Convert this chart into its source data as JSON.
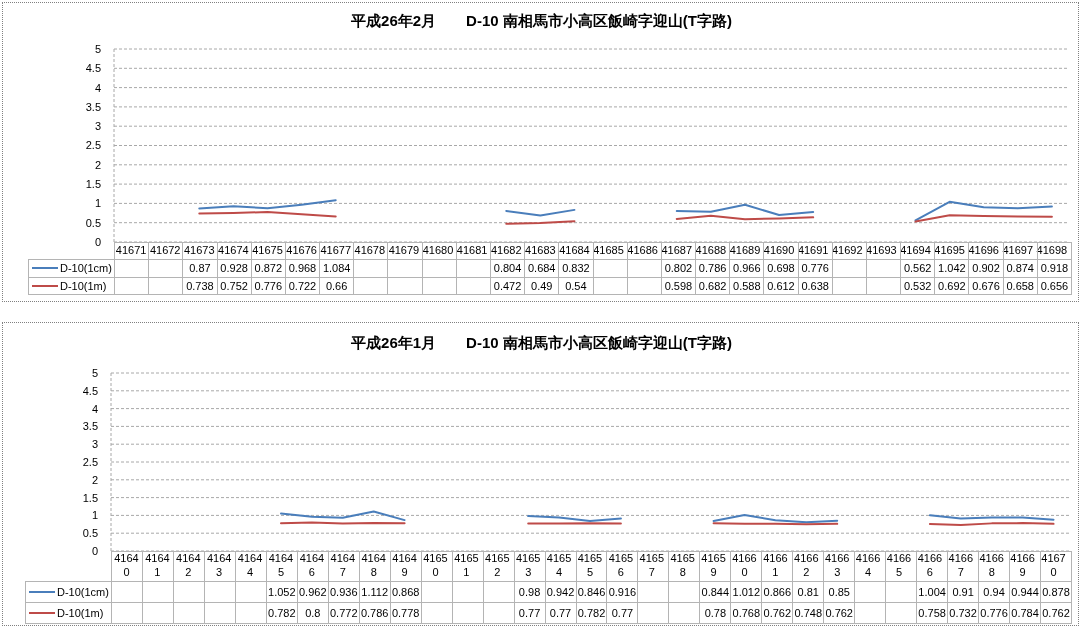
{
  "chart_data": [
    {
      "type": "line",
      "title": "平成26年2月　　D-10 南相馬市小高区飯崎字迎山(T字路)",
      "categories": [
        "41671",
        "41672",
        "41673",
        "41674",
        "41675",
        "41676",
        "41677",
        "41678",
        "41679",
        "41680",
        "41681",
        "41682",
        "41683",
        "41684",
        "41685",
        "41686",
        "41687",
        "41688",
        "41689",
        "41690",
        "41691",
        "41692",
        "41693",
        "41694",
        "41695",
        "41696",
        "41697",
        "41698"
      ],
      "series": [
        {
          "name": "D-10(1cm)",
          "color": "#4a7ebb",
          "values": [
            null,
            null,
            0.87,
            0.928,
            0.872,
            0.968,
            1.084,
            null,
            null,
            null,
            null,
            0.804,
            0.684,
            0.832,
            null,
            null,
            0.802,
            0.786,
            0.966,
            0.698,
            0.776,
            null,
            null,
            0.562,
            1.042,
            0.902,
            0.874,
            0.918
          ]
        },
        {
          "name": "D-10(1m)",
          "color": "#be4b48",
          "values": [
            null,
            null,
            0.738,
            0.752,
            0.776,
            0.722,
            0.66,
            null,
            null,
            null,
            null,
            0.472,
            0.49,
            0.54,
            null,
            null,
            0.598,
            0.682,
            0.588,
            0.612,
            0.638,
            null,
            null,
            0.532,
            0.692,
            0.676,
            0.658,
            0.656
          ]
        }
      ],
      "ylim": [
        0,
        5
      ],
      "yticks": [
        0,
        0.5,
        1,
        1.5,
        2,
        2.5,
        3,
        3.5,
        4,
        4.5,
        5
      ],
      "grid": "y",
      "legend": "bottom left",
      "marker": "none",
      "data_labels": true
    },
    {
      "type": "line",
      "title": "平成26年1月　　D-10 南相馬市小高区飯崎字迎山(T字路)",
      "categories": [
        "41640",
        "41641",
        "41642",
        "41643",
        "41644",
        "41645",
        "41646",
        "41647",
        "41648",
        "41649",
        "41650",
        "41651",
        "41652",
        "41653",
        "41654",
        "41655",
        "41656",
        "41657",
        "41658",
        "41659",
        "41660",
        "41661",
        "41662",
        "41663",
        "41664",
        "41665",
        "41666",
        "41667",
        "41668",
        "41669",
        "41670"
      ],
      "series": [
        {
          "name": "D-10(1cm)",
          "color": "#4a7ebb",
          "values": [
            null,
            null,
            null,
            null,
            null,
            1.052,
            0.962,
            0.936,
            1.112,
            0.868,
            null,
            null,
            null,
            0.98,
            0.942,
            0.846,
            0.916,
            null,
            null,
            0.844,
            1.012,
            0.866,
            0.81,
            0.85,
            null,
            null,
            1.004,
            0.91,
            0.94,
            0.944,
            0.878
          ]
        },
        {
          "name": "D-10(1m)",
          "color": "#be4b48",
          "values": [
            null,
            null,
            null,
            null,
            null,
            0.782,
            0.8,
            0.772,
            0.786,
            0.778,
            null,
            null,
            null,
            0.77,
            0.77,
            0.782,
            0.77,
            null,
            null,
            0.78,
            0.768,
            0.762,
            0.748,
            0.762,
            null,
            null,
            0.758,
            0.732,
            0.776,
            0.784,
            0.762
          ]
        }
      ],
      "ylim": [
        0,
        5
      ],
      "yticks": [
        0,
        0.5,
        1,
        1.5,
        2,
        2.5,
        3,
        3.5,
        4,
        4.5,
        5
      ],
      "grid": "y",
      "legend": "bottom left",
      "marker": "none",
      "data_labels": true
    }
  ]
}
